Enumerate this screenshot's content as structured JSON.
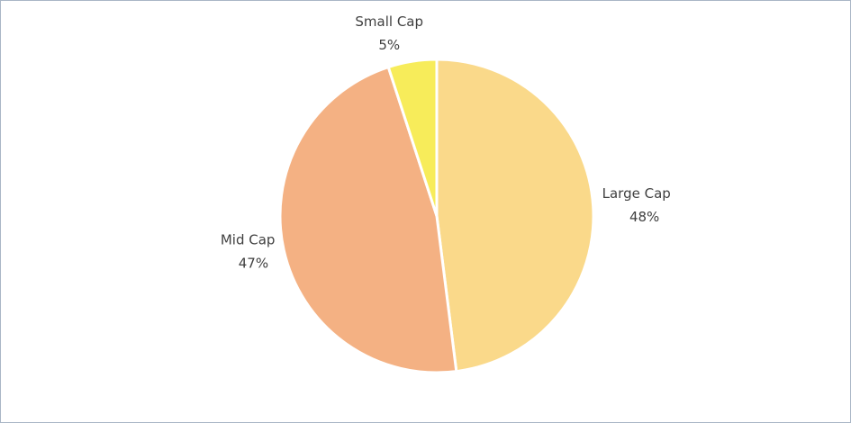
{
  "chart_data": {
    "type": "pie",
    "categories": [
      "Large Cap",
      "Mid Cap",
      "Small Cap"
    ],
    "values": [
      48,
      47,
      5
    ],
    "value_labels": [
      "48%",
      "47%",
      "5%"
    ],
    "colors": [
      "#fad98a",
      "#f4b183",
      "#f7ec5a"
    ]
  }
}
